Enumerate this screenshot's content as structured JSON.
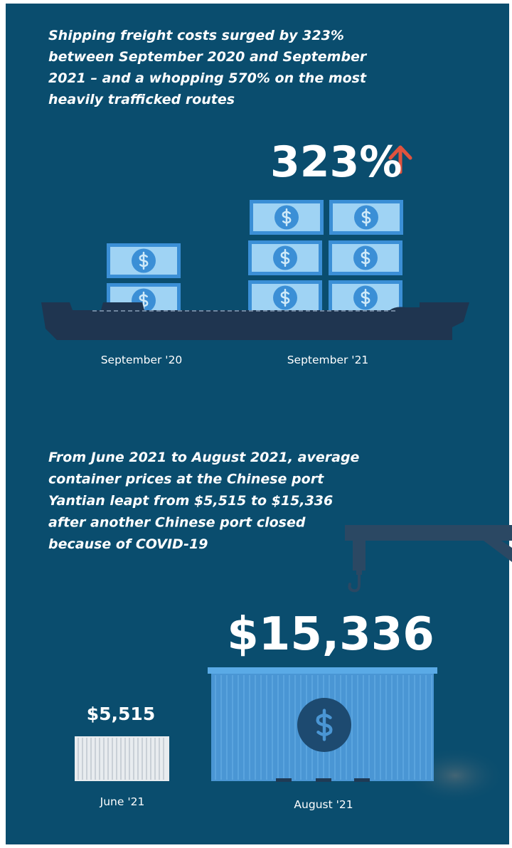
{
  "freight": {
    "text": [
      "Shipping freight costs surged by 323%",
      "between September 2020 and September",
      "2021 – and a whopping 570% on the most",
      "heavily trafficked routes"
    ],
    "headline": "323%",
    "labels": [
      "September '20",
      "September '21"
    ]
  },
  "containers": {
    "text": [
      "From June 2021 to August 2021, average",
      "container prices at the Chinese port",
      "Yantian leapt from $5,515 to $15,336",
      "after another Chinese port closed",
      "because of COVID-19"
    ],
    "before_price": "$5,515",
    "after_price": "$15,336",
    "labels": [
      "June '21",
      "August '21"
    ]
  }
}
